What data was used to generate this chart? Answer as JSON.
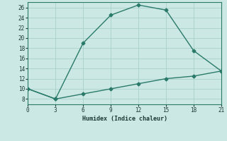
{
  "line1_x": [
    0,
    3,
    6,
    9,
    12,
    15,
    18,
    21
  ],
  "line1_y": [
    10,
    8,
    19,
    24.5,
    26.5,
    25.5,
    17.5,
    13.5
  ],
  "line2_x": [
    0,
    3,
    6,
    9,
    12,
    15,
    18,
    21
  ],
  "line2_y": [
    10,
    8,
    9,
    10,
    11,
    12,
    12.5,
    13.5
  ],
  "color": "#2a7a6a",
  "bg_color": "#cce8e4",
  "grid_color": "#aed4cf",
  "xlabel": "Humidex (Indice chaleur)",
  "xlim": [
    0,
    21
  ],
  "ylim": [
    7,
    27
  ],
  "xticks": [
    0,
    3,
    6,
    9,
    12,
    15,
    18,
    21
  ],
  "yticks": [
    8,
    10,
    12,
    14,
    16,
    18,
    20,
    22,
    24,
    26
  ],
  "line_width": 1.0,
  "marker": "D",
  "marker_size": 2.5
}
